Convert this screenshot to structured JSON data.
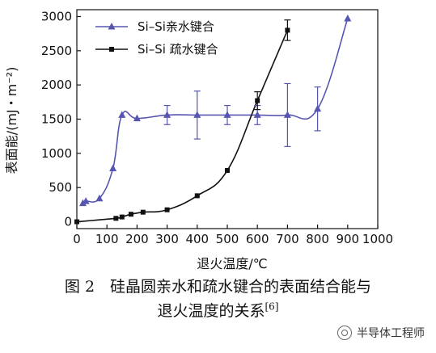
{
  "chart_data": {
    "type": "line",
    "xlabel": "退火温度/℃",
    "ylabel": "表面能/(mJ・m⁻²)",
    "xlim": [
      0,
      1000
    ],
    "ylim": [
      -100,
      3100
    ],
    "xticks": [
      0,
      100,
      200,
      300,
      400,
      500,
      600,
      700,
      800,
      900,
      1000
    ],
    "yticks": [
      0,
      500,
      1000,
      1500,
      2000,
      2500,
      3000
    ],
    "legend_position": "top-left",
    "grid": false,
    "series": [
      {
        "name": "Si–Si亲水键合",
        "color": "#5656b0",
        "marker": "triangle",
        "points": [
          {
            "x": 20,
            "y": 270
          },
          {
            "x": 30,
            "y": 300
          },
          {
            "x": 75,
            "y": 340
          },
          {
            "x": 120,
            "y": 780
          },
          {
            "x": 150,
            "y": 1560
          },
          {
            "x": 200,
            "y": 1510
          },
          {
            "x": 300,
            "y": 1560,
            "err": 140
          },
          {
            "x": 400,
            "y": 1560,
            "err": 350
          },
          {
            "x": 500,
            "y": 1560,
            "err": 140
          },
          {
            "x": 600,
            "y": 1560,
            "err": 140
          },
          {
            "x": 700,
            "y": 1560,
            "err": 460
          },
          {
            "x": 800,
            "y": 1650,
            "err": 320
          },
          {
            "x": 900,
            "y": 2970
          }
        ]
      },
      {
        "name": "Si–Si 疏水键合",
        "color": "#111111",
        "marker": "square",
        "points": [
          {
            "x": 0,
            "y": 0
          },
          {
            "x": 130,
            "y": 50
          },
          {
            "x": 150,
            "y": 70
          },
          {
            "x": 180,
            "y": 110
          },
          {
            "x": 220,
            "y": 140
          },
          {
            "x": 300,
            "y": 175
          },
          {
            "x": 400,
            "y": 380
          },
          {
            "x": 500,
            "y": 750
          },
          {
            "x": 600,
            "y": 1770,
            "err": 130
          },
          {
            "x": 700,
            "y": 2800,
            "err": 150
          }
        ]
      }
    ]
  },
  "caption": {
    "line1": "图 2　硅晶圆亲水和疏水键合的表面结合能与",
    "line2": "退火温度的关系",
    "ref": "[6]"
  },
  "watermark": {
    "text": "半导体工程师",
    "icon": "wechat-icon"
  }
}
